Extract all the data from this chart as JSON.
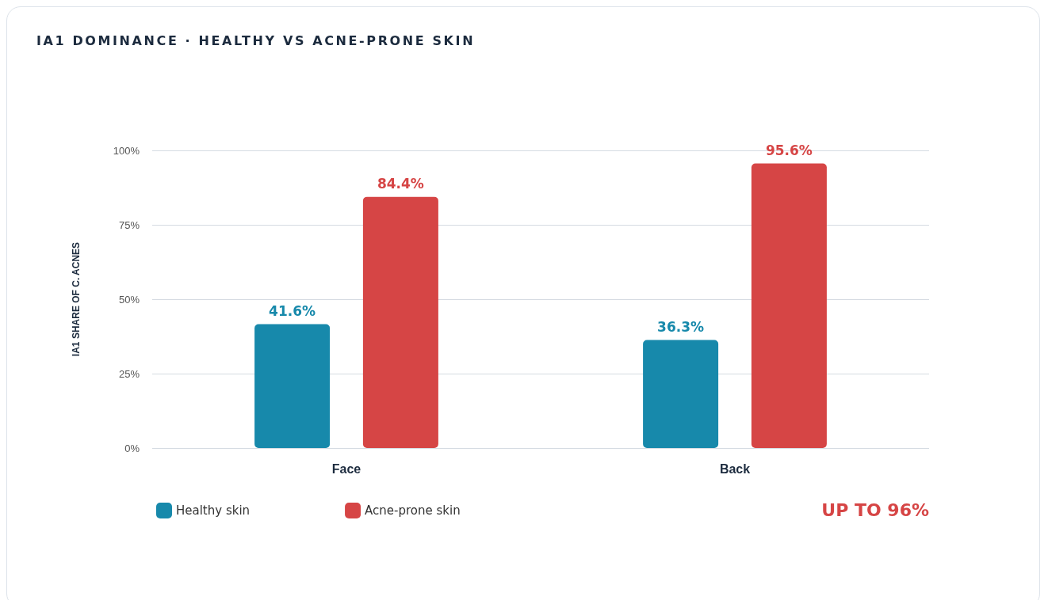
{
  "chart_data": {
    "type": "bar",
    "title": "IA1 DOMINANCE · HEALTHY VS ACNE-PRONE SKIN",
    "ylabel": "IA1 SHARE OF C. ACNES",
    "categories": [
      "Face",
      "Back"
    ],
    "series": [
      {
        "name": "Healthy skin",
        "color": "#1789ab",
        "values": [
          41.6,
          36.3
        ],
        "value_labels": [
          "41.6%",
          "36.3%"
        ]
      },
      {
        "name": "Acne-prone skin",
        "color": "#d64545",
        "values": [
          84.4,
          95.6
        ],
        "value_labels": [
          "84.4%",
          "95.6%"
        ]
      }
    ],
    "ylim": [
      0,
      100
    ],
    "yticks": [
      {
        "value": 0,
        "label": "0%"
      },
      {
        "value": 25,
        "label": "25%"
      },
      {
        "value": 50,
        "label": "50%"
      },
      {
        "value": 75,
        "label": "75%"
      },
      {
        "value": 100,
        "label": "100%"
      }
    ],
    "grid": "y",
    "legend": "bottom left",
    "annotations": [
      "UP TO 96%"
    ]
  }
}
